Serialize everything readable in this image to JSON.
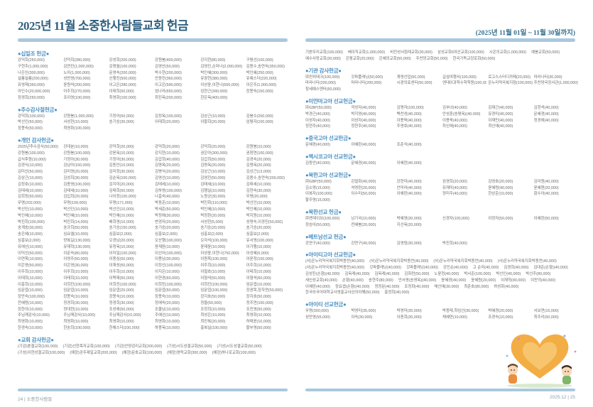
{
  "header": {
    "title": "2025년 11월 소중한사람들교회 헌금",
    "date_range": "(2025년 11월 01일 ~ 11월 30일까지)"
  },
  "footer": {
    "left": "24 | 소중한사람들",
    "right": "2025.12 | 25"
  },
  "colors": {
    "accent_blue": "#4a90c2",
    "title_blue": "#2e607f",
    "bar_blue": "#a9c8dd",
    "body_text": "#6a6a6a",
    "heart_orange": "#f2a93b"
  },
  "icons": {
    "illustration": "children-heart-illustration"
  },
  "left_page": {
    "sections": [
      {
        "id": "tithe",
        "title": "●십일조 헌금●",
        "layout": "grid6",
        "entries": [
          "강덕희(250,000)",
          "강덕희(280,000)",
          "강성희(200,000)",
          "강원봉(400,000)",
          "강지현(80,000)",
          "구평선(100,000)",
          "구현주(1,000,000)",
          "김연진(1,000,000)",
          "김명월(100,000)",
          "김영산(50,000)",
          "김영진,손마나(2,000,000)",
          "김용수,송연숙(350,000)",
          "나은신(300,000)",
          "노아(1,000,000)",
          "문영숙(200,000)",
          "박수현(200,000)",
          "박인혜(300,000)",
          "박인혜(250,000)",
          "설룡설룡(200,000)",
          "성찬영(700,000)",
          "신행진(500,000)",
          "안윤진(360,000)",
          "유광현(380,000)",
          "유예스더(220,000)",
          "유영재(350,000)",
          "윤원석(200,000)",
          "이고은(280,000)",
          "이고은(590,000)",
          "이성윤,이현나(550,000)",
          "이은주(1,000,000)",
          "아인수(20,000,000)",
          "아주희(270,000)",
          "이태희(50,000)",
          "엄나라(650,000)",
          "임현근(340,000)",
          "장몽숙(150,000)",
          "정경희(250,000)",
          "조이영(100,000)",
          "최영화(100,000)",
          "최진옥(200,000)",
          "한은옥(400,000)"
        ]
      },
      {
        "id": "thanksgiving-day",
        "title": "●추수감사절헌금●",
        "layout": "grid6",
        "entries": [
          "강덕희(100,000)",
          "강원봉(1,000,000)",
          "기정아(50,000)",
          "김정옥(100,000)",
          "김상근(10,000)",
          "김봉수(200,000)",
          "박선인(50,000)",
          "서성현(10,000)",
          "송기승(30,000)",
          "이태희(20,000)",
          "이황희(20,000)",
          "임평자(100,000)",
          "장몽숙(50,000)",
          "최영화(100,000)"
        ]
      },
      {
        "id": "personal-thanks",
        "title": "●개인 감사헌금●",
        "layout": "grid6",
        "entries": [
          "2025년추수감사(50,000)",
          "강대분(10,000)",
          "강덕희(20,000)",
          "강덕희(20,000)",
          "강덕희(20,000)",
          "강원봉(10,000)",
          "강원봉(100,000)",
          "강원봉(100,000)",
          "강윤옥(10,000)",
          "강지현(10,000)",
          "권은아(300,000)",
          "권창연(100,000)",
          "급식후원(10,000)",
          "기정아(30,000)",
          "기정아(30,000)",
          "김갑희(40,000)",
          "김갑희(50,000)",
          "김경숙(20,000)",
          "김경식(10,000)",
          "김남아(150,000)",
          "김동안(10,000)",
          "김명옥(20,000)",
          "김명옥(20,000)",
          "김명옥(20,000)",
          "김미선(50,000)",
          "김미영(20,000)",
          "김미정(30,000)",
          "김병식(20,000)",
          "김상근(10,000)",
          "김상근(13,000)",
          "김상근(10,000)",
          "김성희(30,000)",
          "김순옥(100,000)",
          "김영선(10,000)",
          "김영진(50,000)",
          "김용수,송연숙(200,000)",
          "김정호(10,000)",
          "김종영(100,000)",
          "김지미(20,000)",
          "김태세(10,000)",
          "김태세(10,000)",
          "김태세(10,000)",
          "김태세(10,000)",
          "김태세(10,000)",
          "김태희(50,000)",
          "김하영(100,000)",
          "김행실(10,000)",
          "김현숙(30,000)",
          "김희정(50,000)",
          "김입희(20,000)",
          "나이정(100,000)",
          "나흠숙(40,000)",
          "노원균(30,000)",
          "무명(20,000)",
          "무명(202,000)",
          "무명(109,000)",
          "무명(171,000)",
          "박동준(10,000)",
          "박민화(110,000)",
          "박선인(10,000)",
          "박선인(10,000)",
          "박선인(10,000)",
          "박선인(10,000)",
          "박세준(50,000)",
          "박인혜(10,000)",
          "박인혜(10,000)",
          "박인혜(10,000)",
          "박인혜(10,000)",
          "박인혜(10,000)",
          "박정애(30,000)",
          "박정환(20,000)",
          "박지원(10,000)",
          "박진희(100,000)",
          "박진희(14,000)",
          "배희영(10,000)",
          "변경자(20,000)",
          "서성현(5,000)",
          "성명숙,이경진(50,000)",
          "송계송(30,000)",
          "송규희(50,000)",
          "송기승(150,000)",
          "송기승(20,000)",
          "송기승(20,000)",
          "송기승(20,000)",
          "송은혜(10,000)",
          "심요엘(10,000)",
          "심흥보(2,000)",
          "심흥보(2,000)",
          "심흥보(2,000)",
          "심흥보(2,000)",
          "심흥보(2,000)",
          "양복길(130,000)",
          "오경남(20,000)",
          "오산행(100,000)",
          "오자석(100,000)",
          "유서영(100,000)",
          "유애선(10,000)",
          "유재혁(130,000)",
          "유정옥(10,000)",
          "윤재윤(10,000)",
          "윤재윤(10,000)",
          "이가행(10,000)",
          "이덕선(50,000)",
          "이문숙(80,000)",
          "이미일(100,000)",
          "이선어(100,000)",
          "이성윤,이현나(750,000)",
          "이성혜(5,000)",
          "이연목(10,000)",
          "이영주(50,000)",
          "이용심(50,000)",
          "이용남(30,000)",
          "이원목(100,000)",
          "이윤정(100,000)",
          "이은영(50,000)",
          "이은영(30,000)",
          "이재성(50,000)",
          "이정선(100,000)",
          "이주희(10,000)",
          "이주희(10,000)",
          "이주희(10,000)",
          "이주희(10,000)",
          "이주희(10,000)",
          "이지은(10,000)",
          "이철호(10,000)",
          "이태희(10,000)",
          "이태희(10,000)",
          "이태희(10,000)",
          "이택재(50,000)",
          "이현경(60,000)",
          "이형석(50,000)",
          "이형석(60,000)",
          "이흥희(10,000)",
          "이희진(100,000)",
          "이희진(100,000)",
          "이희진(100,000)",
          "이희진(100,000)",
          "임문엽(10,000)",
          "임문엽(10,000)",
          "임문엽(10,000)",
          "임문엽(20,000)",
          "임문엽(50,000)",
          "임문엽(100,000)",
          "장광목,장자연(50,000)",
          "장만숙(100,000)",
          "장몽숙(10,000)",
          "장몽숙(10,000)",
          "장몽숙(10,000)",
          "장지호(50,000)",
          "장지호(50,000)",
          "전혜령(10,000)",
          "정경희(30,000)",
          "정경희(30,000)",
          "정애숙(20,000)",
          "정을(50,000)",
          "정주연(100,000)",
          "정한아(10,000)",
          "정대현(10,000)",
          "조성애(50,000)",
          "조올남(10,000)",
          "조정희(10,000)",
          "조진영(50,000)",
          "주님께감사(10,000)",
          "주님께감사(10,000)",
          "주님께감사(10,000)",
          "주예선(10,000)",
          "최성은(10,000)",
          "최영화(10,000)",
          "최영화(10,000)",
          "최영화(10,000)",
          "최영화(10,000)",
          "최영화(10,000)",
          "최진복(20,000)",
          "하태윤(10,000)",
          "한경숙(10,000)",
          "한송희(100,000)",
          "한예스더(100,000)",
          "하몽옥(10,000)",
          "홍복실(100,000)",
          "황부영(50,000)"
        ]
      },
      {
        "id": "church-thanks",
        "title": "●교회 감사헌금●",
        "layout": "flow",
        "entries": [
          "(기감)뿐결교회(100,000)",
          "(기감)선한목자교회(100,000)",
          "(기감)안양감리교회(200,000)",
          "(기성)시도성결교회(50,000)",
          "(기성)시도성결교회(50,000)",
          "(기성)이현성결교회(100,000)",
          "(예장)공주제일교회(200,000)",
          "(예장)문호교회(100,000)",
          "(예장)영락교회(300,000)",
          "(예장)하나로교회(100,000)"
        ]
      }
    ]
  },
  "right_page": {
    "sections": [
      {
        "id": "church-thanks-cont",
        "title": "",
        "layout": "flow",
        "entries": [
          "기쁜우리교회(100,000)",
          "베이직교회(1,000,000)",
          "비전성서침례교회(30,000)",
          "삼성교회6여선교회(100,000)",
          "시온의교회(1,000,000)",
          "예봉교회(50,000)",
          "예수사랑교회(30,000)",
          "은평교회(20,000)",
          "은혜의교회(50,000)",
          "주찬양교회(50,000)",
          "한국기독교장로회(50,000)"
        ]
      },
      {
        "id": "org-thanks",
        "title": "●기관 감사헌금●",
        "layout": "grid6",
        "entries": [
          "㈜컨피테크(100,000)",
          "갓파플래닝(50,000)",
          "계영산업(50,000)",
          "길섶여행사(100,000)",
          "로고스스터디카페(20,000)",
          "마라나타(30,000)",
          "마라나타(200,000)",
          "마라나타(200,000)",
          "시광의료센터(50,000)",
          "엔데이과학수학학원(100,000)",
          "온누리약국복지점(100,000)",
          "주찬양국장사관(1,000,000)",
          "청세예스엔터(50,000)"
        ]
      },
      {
        "id": "myanmar-orphan",
        "title": "●미얀마고아 선교헌금●",
        "layout": "grid6",
        "entries": [
          "㈜GBP(50,000)",
          "곽성자(40,000)",
          "김명자(100,000)",
          "김부녀(40,000)",
          "김재근(40,000)",
          "김현석(40,000)",
          "박경근(40,000)",
          "박지영(40,000)",
          "백찬성(40,000)",
          "안성훈(송평옥)(40,000)",
          "유경미(40,000)",
          "문혜경(40,000)",
          "이성자(40,000)",
          "이성자(40,000)",
          "이용욱(40,000)",
          "이용욱(40,000)",
          "이재민(40,000)",
          "정경애(40,000)",
          "정현주(40,000)",
          "정현주(40,000)",
          "주영호(40,000)",
          "최신애(40,000)",
          "최신애(40,000)"
        ]
      },
      {
        "id": "china-orphan",
        "title": "●중국고아 선교헌금●",
        "layout": "grid6",
        "entries": [
          "문혜경(40,000)",
          "이혜란(40,000)",
          "조춘식(40,000)"
        ]
      },
      {
        "id": "mexico-orphan",
        "title": "●멕시코고아 선교헌금●",
        "layout": "grid6",
        "entries": [
          "김동안(40,000)",
          "문혜경(40,000)",
          "이혜란(40,000)"
        ]
      },
      {
        "id": "nk-orphan",
        "title": "●북한고아 선교헌금●",
        "layout": "grid6",
        "entries": [
          "㈜GBP(50,000)",
          "강절화(40,000)",
          "강현미(40,000)",
          "권경희(20,000)",
          "김영호(20,000)",
          "김미원(40,000)",
          "김소영(15,000)",
          "석영란(20,000)",
          "안미라(40,000)",
          "유재미(40,000)",
          "윤혜령(40,000)",
          "윤혜원(20,000)",
          "이복자(100,000)",
          "이수미(50,000)",
          "이혜란(40,000)",
          "정미주(40,000)",
          "한상준(10,000)",
          "함수아(40,000)",
          "황주영(15,000)"
        ]
      },
      {
        "id": "nk-mission",
        "title": "●북한선교 헌금●",
        "layout": "grid6",
        "entries": [
          "㈜엔데이브(100,000)",
          "남기국(10,000)",
          "박혜영(30,000)",
          "신경자(100,000)",
          "이정자(50,000)",
          "이혜란(50,000)",
          "정승아(50,000)",
          "전혜봉(20,000)",
          "지선옥(20,000)"
        ]
      },
      {
        "id": "vietnam-mission",
        "title": "●베트남선교 헌금●",
        "layout": "grid6",
        "entries": [
          "강연구(40,000)",
          "강연구(40,000)",
          "김영림(30,000)",
          "박진희(40,000)"
        ]
      },
      {
        "id": "haiti-orphan",
        "title": "●아이티고아 선교헌금●",
        "layout": "flow",
        "entries": [
          "(사)온누리약국복지회박종찬(40,000)",
          "(사)온누리약국복지회박종찬(40,000)",
          "(사)온누리약국복지회박종찬(40,000)",
          "(사)온누리약국복지회박종찬(40,000)",
          "(사)온누리약국복지회박종찬(40,000)",
          "갓파플래닝(40,000)",
          "갓파플래닝(40,000)",
          "강인순(40,000)",
          "고 순미(40,000)",
          "김경희(40,000)",
          "김대준(손향)(40,000)",
          "김성진(손향)(40,000)",
          "김옥례(40,000)",
          "김옥례(40,000)",
          "김화련(50,000)",
          "노윤정(40,000)",
          "박서준(100,000)",
          "박선인(40,000)",
          "박선주(80,000)",
          "새신성교회(40,000)",
          "손향(40,000)",
          "송현주(80,000)",
          "안서영(송영옥)(40,000)",
          "윤혜경(40,000)",
          "윤혜원(20,000)",
          "이재혁(40,000)",
          "이찬의(40,000)",
          "이혜란(40,000)",
          "장요셉(손향)(40,000)",
          "정정문(40,000)",
          "조정화(40,000)",
          "채신애(30,000)",
          "최춘호(80,000)",
          "하성화(40,000)",
          "한국외국어대학교사영홍교사상의이해(50,000)",
          "홍정희(40,000)"
        ]
      },
      {
        "id": "haiti-mission",
        "title": "●아이티 선교헌금●",
        "layout": "grid6",
        "entries": [
          "무명(300,000)",
          "박영미(35,000)",
          "박영미(35,000)",
          "박종례,최임선(30,000)",
          "박혜경(20,000)",
          "서보연(15,000)",
          "성만영(55,000)",
          "이숙(30,000)",
          "이종희(30,000)",
          "채혜연(10,000)",
          "조경숙(10,000)",
          "최주리(50,000)"
        ]
      }
    ]
  }
}
